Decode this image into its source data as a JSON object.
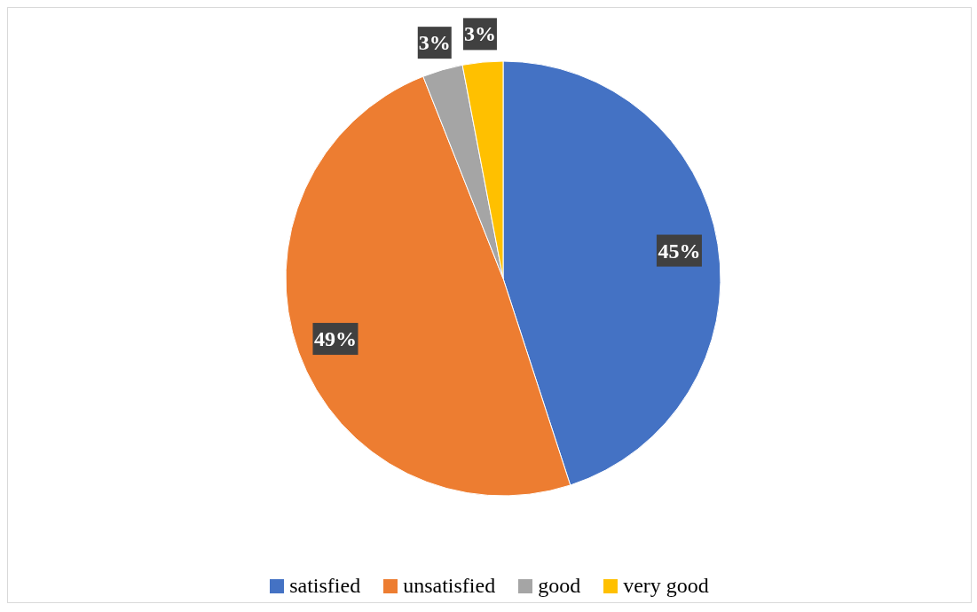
{
  "chart_data": {
    "type": "pie",
    "categories": [
      "satisfied",
      "unsatisfied",
      "good",
      "very good"
    ],
    "values": [
      45,
      49,
      3,
      3
    ],
    "colors": [
      "#4472c4",
      "#ed7d31",
      "#a5a5a5",
      "#ffc000"
    ],
    "value_labels": [
      "45%",
      "49%",
      "3%",
      "3%"
    ],
    "legend": "bottom"
  }
}
